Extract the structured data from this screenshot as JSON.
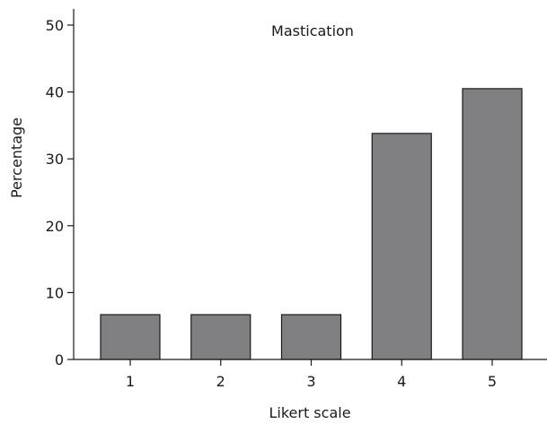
{
  "chart_data": {
    "type": "bar",
    "title": "Mastication",
    "xlabel": "Likert scale",
    "ylabel": "Percentage",
    "categories": [
      "1",
      "2",
      "3",
      "4",
      "5"
    ],
    "values": [
      6.7,
      6.7,
      6.7,
      33.8,
      40.5
    ],
    "ylim": [
      0,
      50
    ],
    "yticks": [
      "0",
      "10",
      "20",
      "30",
      "40",
      "50"
    ],
    "grid": false,
    "legend": "none",
    "bar_color": "#808083"
  }
}
